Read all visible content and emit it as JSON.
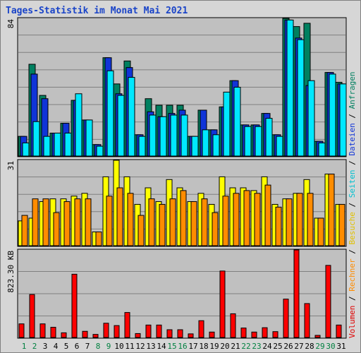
{
  "title": "Tages-Statistik im Monat Mai 2021",
  "chart_data": [
    {
      "type": "bar",
      "panel": "hits",
      "max_label": "84",
      "ylim": [
        0,
        84
      ],
      "grid": true,
      "categories": [
        "1",
        "2",
        "3",
        "4",
        "5",
        "6",
        "7",
        "8",
        "9",
        "10",
        "11",
        "12",
        "13",
        "14",
        "15",
        "16",
        "17",
        "18",
        "19",
        "20",
        "21",
        "22",
        "23",
        "24",
        "25",
        "26",
        "27",
        "28",
        "29",
        "30",
        "31"
      ],
      "weekend_days": [
        "1",
        "2",
        "8",
        "9",
        "15",
        "16",
        "22",
        "23",
        "29",
        "30"
      ],
      "series": [
        {
          "name": "Anfragen",
          "color": "#008060",
          "values": [
            12,
            56,
            37,
            14,
            20,
            34,
            22,
            7,
            60,
            44,
            58,
            13,
            35,
            31,
            31,
            31,
            12,
            28,
            16,
            30,
            46,
            19,
            19,
            26,
            13,
            84,
            79,
            81,
            9,
            51,
            45
          ]
        },
        {
          "name": "Dateien",
          "color": "#1034d8",
          "values": [
            12,
            50,
            35,
            14,
            20,
            34,
            22,
            7,
            60,
            38,
            54,
            13,
            27,
            24,
            26,
            28,
            12,
            28,
            16,
            30,
            46,
            19,
            19,
            26,
            13,
            83,
            72,
            43,
            9,
            51,
            44
          ]
        },
        {
          "name": "Seiten",
          "color": "#00e8ff",
          "values": [
            8,
            21,
            12,
            14,
            14,
            38,
            22,
            6,
            52,
            37,
            48,
            12,
            25,
            24,
            25,
            25,
            12,
            16,
            13,
            39,
            42,
            18,
            18,
            23,
            12,
            83,
            71,
            46,
            8,
            50,
            44
          ]
        }
      ]
    },
    {
      "type": "bar",
      "panel": "visits",
      "max_label": "31",
      "ylim": [
        0,
        31
      ],
      "grid": true,
      "categories": [
        "1",
        "2",
        "3",
        "4",
        "5",
        "6",
        "7",
        "8",
        "9",
        "10",
        "11",
        "12",
        "13",
        "14",
        "15",
        "16",
        "17",
        "18",
        "19",
        "20",
        "21",
        "22",
        "23",
        "24",
        "25",
        "26",
        "27",
        "28",
        "29",
        "30",
        "31"
      ],
      "series": [
        {
          "name": "Besuche",
          "color": "#ffff00",
          "values": [
            9,
            10,
            16,
            17,
            17,
            18,
            19,
            5,
            25,
            31,
            25,
            15,
            21,
            16,
            24,
            21,
            16,
            19,
            15,
            25,
            21,
            21,
            20,
            25,
            15,
            17,
            19,
            24,
            10,
            26,
            15
          ]
        },
        {
          "name": "Rechner",
          "color": "#ff8c00",
          "values": [
            11,
            17,
            17,
            12,
            16,
            17,
            17,
            5,
            18,
            21,
            19,
            11,
            17,
            15,
            17,
            20,
            16,
            17,
            12,
            18,
            19,
            20,
            19,
            22,
            14,
            17,
            19,
            19,
            10,
            26,
            15
          ]
        }
      ]
    },
    {
      "type": "bar",
      "panel": "volume",
      "max_label": "823.30 KB",
      "ylim": [
        0,
        823.3
      ],
      "grid": true,
      "categories": [
        "1",
        "2",
        "3",
        "4",
        "5",
        "6",
        "7",
        "8",
        "9",
        "10",
        "11",
        "12",
        "13",
        "14",
        "15",
        "16",
        "17",
        "18",
        "19",
        "20",
        "21",
        "22",
        "23",
        "24",
        "25",
        "26",
        "27",
        "28",
        "29",
        "30",
        "31"
      ],
      "series": [
        {
          "name": "Volumen",
          "color": "#ff0000",
          "values": [
            128,
            404,
            128,
            96,
            44,
            595,
            58,
            29,
            134,
            112,
            235,
            37,
            117,
            117,
            73,
            73,
            34,
            158,
            51,
            625,
            223,
            89,
            51,
            92,
            55,
            361,
            823,
            319,
            20,
            678,
            117
          ]
        }
      ]
    }
  ],
  "side_legend": [
    {
      "text": "Volumen",
      "color": "#e00000"
    },
    {
      "text": "Rechner",
      "color": "#ff8c00"
    },
    {
      "text": "Besuche",
      "color": "#e0c000"
    },
    {
      "text": "Seiten",
      "color": "#00c0d0"
    },
    {
      "text": "Dateien",
      "color": "#1034d8"
    },
    {
      "text": "Anfragen",
      "color": "#008060"
    }
  ],
  "legend_separator": "/",
  "colors": {
    "panel_bg": "#c0c0c0",
    "frame_bg": "#d6d6d6",
    "grid": "#808080",
    "weekday_label": "#000000",
    "weekend_label": "#008040",
    "title": "#1a44c8"
  }
}
